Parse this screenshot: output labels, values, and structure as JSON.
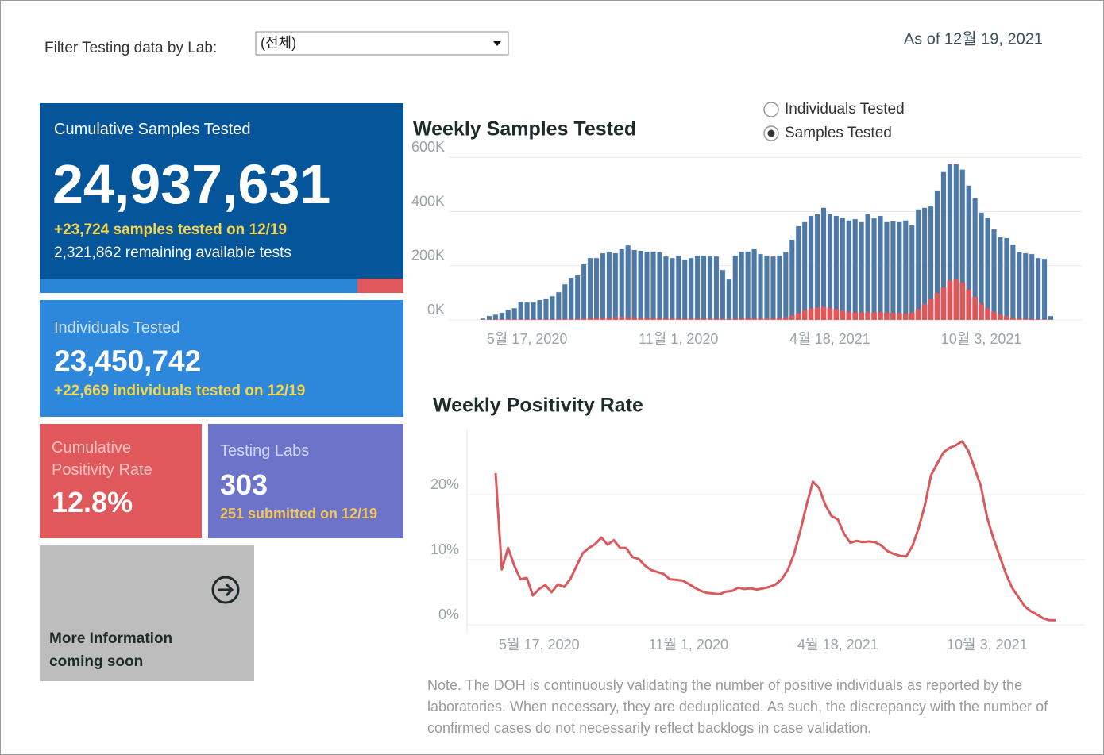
{
  "filter": {
    "label": "Filter Testing data by Lab:",
    "selected": "(전체)"
  },
  "as_of": "As of 12월 19, 2021",
  "cards": {
    "cumulative_samples": {
      "title": "Cumulative Samples Tested",
      "value": "24,937,631",
      "added": "+23,724 samples tested on 12/19",
      "remaining": "2,321,862 remaining available tests"
    },
    "individuals": {
      "title": "Individuals Tested",
      "value": "23,450,742",
      "added": "+22,669  individuals  tested on 12/19"
    },
    "positivity": {
      "title": "Cumulative Positivity Rate",
      "value": "12.8%"
    },
    "labs": {
      "title": "Testing Labs",
      "value": "303",
      "added": "251 submitted on 12/19"
    },
    "more_info": {
      "lines": [
        "More Information",
        "coming soon"
      ]
    }
  },
  "toggle": {
    "options": [
      "Individuals Tested",
      "Samples Tested"
    ],
    "selected": 1
  },
  "note": "Note. The DOH is continuously validating the number of positive individuals as reported by the laboratories. When necessary, they are deduplicated. As such, the discrepancy with the number of confirmed cases do not necessarily reflect backlogs in case validation.",
  "chart_data": [
    {
      "type": "bar",
      "title": "Weekly Samples Tested",
      "x": [
        "2020-03-29",
        "2020-04-05",
        "2020-04-12",
        "2020-04-19",
        "2020-04-26",
        "2020-05-03",
        "2020-05-10",
        "2020-05-17",
        "2020-05-24",
        "2020-05-31",
        "2020-06-07",
        "2020-06-14",
        "2020-06-21",
        "2020-06-28",
        "2020-07-05",
        "2020-07-12",
        "2020-07-19",
        "2020-07-26",
        "2020-08-02",
        "2020-08-09",
        "2020-08-16",
        "2020-08-23",
        "2020-08-30",
        "2020-09-06",
        "2020-09-13",
        "2020-09-20",
        "2020-09-27",
        "2020-10-04",
        "2020-10-11",
        "2020-10-18",
        "2020-10-25",
        "2020-11-01",
        "2020-11-08",
        "2020-11-15",
        "2020-11-22",
        "2020-11-29",
        "2020-12-06",
        "2020-12-13",
        "2020-12-20",
        "2020-12-27",
        "2021-01-03",
        "2021-01-10",
        "2021-01-17",
        "2021-01-24",
        "2021-01-31",
        "2021-02-07",
        "2021-02-14",
        "2021-02-21",
        "2021-02-28",
        "2021-03-07",
        "2021-03-14",
        "2021-03-21",
        "2021-03-28",
        "2021-04-04",
        "2021-04-11",
        "2021-04-18",
        "2021-04-25",
        "2021-05-02",
        "2021-05-09",
        "2021-05-16",
        "2021-05-23",
        "2021-05-30",
        "2021-06-06",
        "2021-06-13",
        "2021-06-20",
        "2021-06-27",
        "2021-07-04",
        "2021-07-11",
        "2021-07-18",
        "2021-07-25",
        "2021-08-01",
        "2021-08-08",
        "2021-08-15",
        "2021-08-22",
        "2021-08-29",
        "2021-09-05",
        "2021-09-12",
        "2021-09-19",
        "2021-09-26",
        "2021-10-03",
        "2021-10-10",
        "2021-10-17",
        "2021-10-24",
        "2021-10-31",
        "2021-11-07",
        "2021-11-14",
        "2021-11-21",
        "2021-11-28",
        "2021-12-05",
        "2021-12-12",
        "2021-12-19"
      ],
      "series": [
        {
          "color": "#4e79a7",
          "values": [
            6000,
            15000,
            20000,
            27000,
            38000,
            44000,
            68000,
            65000,
            65000,
            74000,
            80000,
            88000,
            103000,
            132000,
            156000,
            165000,
            206000,
            229000,
            229000,
            247000,
            250000,
            247000,
            262000,
            276000,
            259000,
            256000,
            253000,
            253000,
            250000,
            235000,
            229000,
            238000,
            223000,
            229000,
            238000,
            238000,
            235000,
            235000,
            185000,
            150000,
            238000,
            253000,
            253000,
            262000,
            244000,
            238000,
            235000,
            238000,
            250000,
            297000,
            347000,
            362000,
            385000,
            391000,
            415000,
            391000,
            385000,
            379000,
            368000,
            373000,
            362000,
            391000,
            376000,
            385000,
            362000,
            365000,
            362000,
            368000,
            350000,
            409000,
            415000,
            420000,
            479000,
            547000,
            576000,
            576000,
            556000,
            497000,
            450000,
            397000,
            379000,
            335000,
            306000,
            303000,
            279000,
            250000,
            247000,
            244000,
            229000,
            226000,
            15000
          ]
        },
        {
          "color": "#e15759",
          "values": [
            1000,
            2000,
            2000,
            3000,
            3000,
            3000,
            3000,
            3000,
            3000,
            3000,
            3000,
            3000,
            3000,
            4000,
            4000,
            4000,
            6000,
            8000,
            8000,
            9000,
            9000,
            10000,
            11000,
            10000,
            10000,
            9000,
            8000,
            8000,
            7000,
            7000,
            6000,
            6000,
            6000,
            6000,
            6000,
            6000,
            6000,
            6000,
            5000,
            4000,
            6000,
            7000,
            7000,
            7000,
            7000,
            7000,
            7000,
            8000,
            10000,
            16000,
            25000,
            35000,
            42000,
            45000,
            48000,
            44000,
            40000,
            35000,
            30000,
            28000,
            28000,
            28000,
            29000,
            29000,
            28000,
            27000,
            25000,
            24000,
            27000,
            40000,
            58000,
            78000,
            100000,
            120000,
            145000,
            150000,
            138000,
            112000,
            85000,
            60000,
            42000,
            30000,
            20000,
            13000,
            9000,
            7000,
            5000,
            4000,
            3000,
            3000,
            1000
          ]
        }
      ],
      "ylim": [
        0,
        610000
      ],
      "yticks": [
        {
          "value": 0,
          "label": "0K"
        },
        {
          "value": 200000,
          "label": "200K"
        },
        {
          "value": 400000,
          "label": "400K"
        },
        {
          "value": 600000,
          "label": "600K"
        }
      ],
      "xticks": [
        {
          "value": "2020-05-17",
          "label": "5월 17, 2020"
        },
        {
          "value": "2020-11-01",
          "label": "11월 1, 2020"
        },
        {
          "value": "2021-04-18",
          "label": "4월 18, 2021"
        },
        {
          "value": "2021-10-03",
          "label": "10월 3, 2021"
        }
      ],
      "grid": true
    },
    {
      "type": "line",
      "title": "Weekly Positivity Rate",
      "color": "#d9595c",
      "x": [
        "2020-03-29",
        "2020-04-05",
        "2020-04-12",
        "2020-04-19",
        "2020-04-26",
        "2020-05-03",
        "2020-05-10",
        "2020-05-17",
        "2020-05-24",
        "2020-05-31",
        "2020-06-07",
        "2020-06-14",
        "2020-06-21",
        "2020-06-28",
        "2020-07-05",
        "2020-07-12",
        "2020-07-19",
        "2020-07-26",
        "2020-08-02",
        "2020-08-09",
        "2020-08-16",
        "2020-08-23",
        "2020-08-30",
        "2020-09-06",
        "2020-09-13",
        "2020-09-20",
        "2020-09-27",
        "2020-10-04",
        "2020-10-11",
        "2020-10-18",
        "2020-10-25",
        "2020-11-01",
        "2020-11-08",
        "2020-11-15",
        "2020-11-22",
        "2020-11-29",
        "2020-12-06",
        "2020-12-13",
        "2020-12-20",
        "2020-12-27",
        "2021-01-03",
        "2021-01-10",
        "2021-01-17",
        "2021-01-24",
        "2021-01-31",
        "2021-02-07",
        "2021-02-14",
        "2021-02-21",
        "2021-02-28",
        "2021-03-07",
        "2021-03-14",
        "2021-03-21",
        "2021-03-28",
        "2021-04-04",
        "2021-04-11",
        "2021-04-18",
        "2021-04-25",
        "2021-05-02",
        "2021-05-09",
        "2021-05-16",
        "2021-05-23",
        "2021-05-30",
        "2021-06-06",
        "2021-06-13",
        "2021-06-20",
        "2021-06-27",
        "2021-07-04",
        "2021-07-11",
        "2021-07-18",
        "2021-07-25",
        "2021-08-01",
        "2021-08-08",
        "2021-08-15",
        "2021-08-22",
        "2021-08-29",
        "2021-09-05",
        "2021-09-12",
        "2021-09-19",
        "2021-09-26",
        "2021-10-03",
        "2021-10-10",
        "2021-10-17",
        "2021-10-24",
        "2021-10-31",
        "2021-11-07",
        "2021-11-14",
        "2021-11-21",
        "2021-11-28",
        "2021-12-05",
        "2021-12-12",
        "2021-12-19"
      ],
      "values": [
        23.3,
        8.5,
        11.8,
        9.1,
        7.0,
        7.2,
        4.5,
        5.5,
        6.1,
        5.0,
        6.2,
        5.8,
        7.0,
        9.0,
        11.0,
        11.8,
        12.4,
        13.4,
        12.3,
        13.0,
        11.8,
        11.8,
        10.4,
        10.1,
        9.1,
        8.4,
        8.1,
        7.8,
        7.0,
        6.9,
        6.8,
        6.3,
        5.7,
        5.2,
        4.9,
        4.8,
        4.7,
        5.1,
        5.2,
        5.7,
        5.5,
        5.6,
        5.4,
        5.6,
        5.8,
        6.2,
        7.0,
        8.5,
        11.0,
        14.5,
        18.5,
        22.0,
        21.0,
        18.4,
        16.7,
        16.2,
        14.0,
        12.6,
        12.9,
        12.7,
        12.8,
        12.7,
        12.2,
        11.3,
        10.9,
        10.6,
        10.5,
        12.1,
        14.9,
        18.4,
        23.0,
        24.8,
        26.5,
        27.2,
        27.6,
        28.2,
        26.7,
        24.0,
        21.3,
        16.5,
        13.3,
        10.6,
        7.9,
        5.7,
        4.3,
        2.9,
        2.1,
        1.6,
        1.0,
        0.7,
        0.7
      ],
      "ylim": [
        0,
        30
      ],
      "yticks": [
        {
          "value": 0,
          "label": "0%"
        },
        {
          "value": 10,
          "label": "10%"
        },
        {
          "value": 20,
          "label": "20%"
        }
      ],
      "xticks": [
        {
          "value": "2020-05-17",
          "label": "5월 17, 2020"
        },
        {
          "value": "2020-11-01",
          "label": "11월 1, 2020"
        },
        {
          "value": "2021-04-18",
          "label": "4월 18, 2021"
        },
        {
          "value": "2021-10-03",
          "label": "10월 3, 2021"
        }
      ],
      "grid": true
    }
  ]
}
